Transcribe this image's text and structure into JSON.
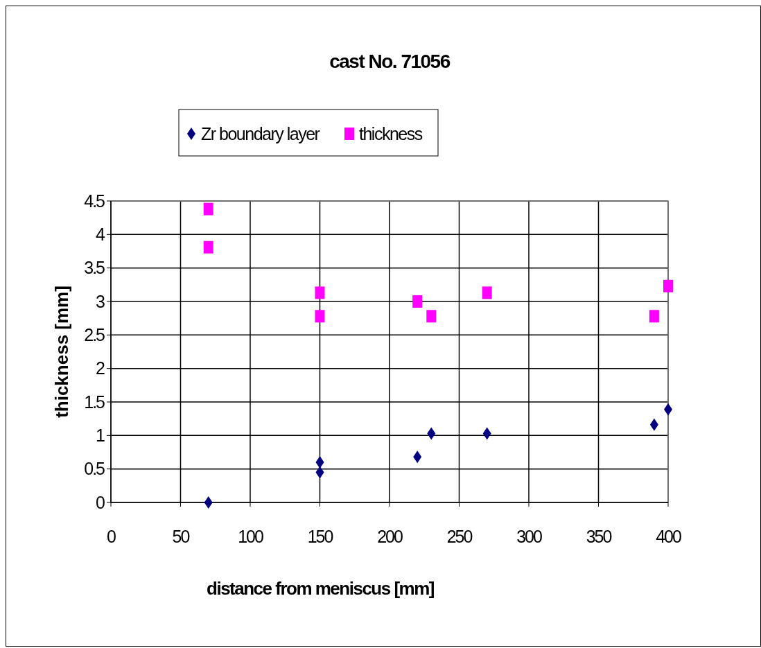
{
  "chart_data": {
    "type": "scatter",
    "title": "cast No. 71056",
    "xlabel": "distance from meniscus [mm]",
    "ylabel": "thickness [mm]",
    "xlim": [
      0,
      400
    ],
    "xticks": [
      0,
      50,
      100,
      150,
      200,
      250,
      300,
      350,
      400
    ],
    "ylim": [
      0,
      4.5
    ],
    "yticks": [
      0,
      0.5,
      1,
      1.5,
      2,
      2.5,
      3,
      3.5,
      4,
      4.5
    ],
    "grid": true,
    "legend": "top left",
    "series": [
      {
        "name": "Zr boundary layer",
        "color": "#000080",
        "marker": "diamond",
        "x": [
          70,
          150,
          150,
          220,
          230,
          270,
          390,
          400
        ],
        "values": [
          0,
          0.6,
          0.45,
          0.68,
          1.03,
          1.03,
          1.16,
          1.39
        ]
      },
      {
        "name": "thickness",
        "color": "#ff00ff",
        "marker": "square",
        "x": [
          70,
          70,
          150,
          150,
          220,
          230,
          270,
          390,
          400
        ],
        "values": [
          4.38,
          3.81,
          3.13,
          2.78,
          3.0,
          2.78,
          3.13,
          2.78,
          3.23
        ]
      }
    ]
  }
}
